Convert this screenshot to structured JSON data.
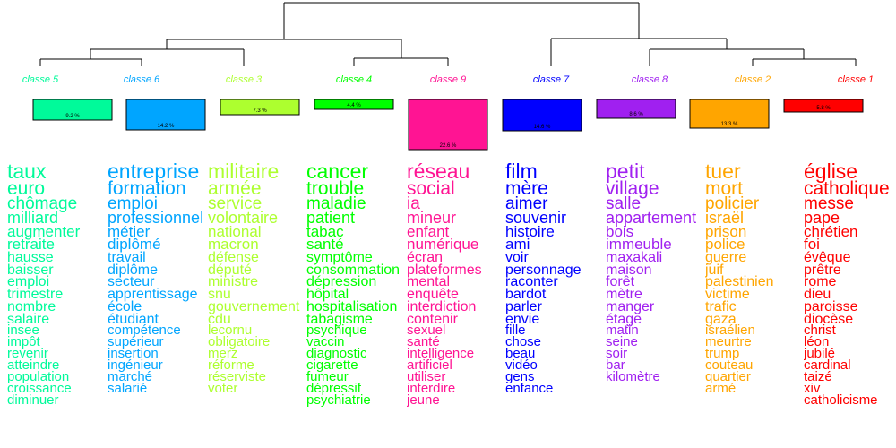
{
  "classes": [
    {
      "label": "classe  5",
      "percent": "9.2 %",
      "color": "#00FA9A",
      "words": [
        "taux",
        "euro",
        "chômage",
        "milliard",
        "augmenter",
        "retraite",
        "hausse",
        "baisser",
        "emploi",
        "trimestre",
        "nombre",
        "salaire",
        "insee",
        "impôt",
        "revenir",
        "atteindre",
        "population",
        "croissance",
        "diminuer"
      ]
    },
    {
      "label": "classe  6",
      "percent": "14.2 %",
      "color": "#00A5FF",
      "words": [
        "entreprise",
        "formation",
        "emploi",
        "professionnel",
        "métier",
        "diplômé",
        "travail",
        "diplôme",
        "secteur",
        "apprentissage",
        "école",
        "étudiant",
        "compétence",
        "supérieur",
        "insertion",
        "ingénieur",
        "marché",
        "salarié"
      ]
    },
    {
      "label": "classe  3",
      "percent": "7.3 %",
      "color": "#ADFF2F",
      "words": [
        "militaire",
        "armée",
        "service",
        "volontaire",
        "national",
        "macron",
        "défense",
        "député",
        "ministre",
        "snu",
        "gouvernement",
        "cdu",
        "lecornu",
        "obligatoire",
        "merz",
        "réforme",
        "réserviste",
        "voter"
      ]
    },
    {
      "label": "classe  4",
      "percent": "4.4 %",
      "color": "#00FF00",
      "words": [
        "cancer",
        "trouble",
        "maladie",
        "patient",
        "tabac",
        "santé",
        "symptôme",
        "consommation",
        "dépression",
        "hôpital",
        "hospitalisation",
        "tabagisme",
        "psychique",
        "vaccin",
        "diagnostic",
        "cigarette",
        "fumeur",
        "dépressif",
        "psychiatrie"
      ]
    },
    {
      "label": "classe  9",
      "percent": "22.6 %",
      "color": "#FF1493",
      "words": [
        "réseau",
        "social",
        "ia",
        "mineur",
        "enfant",
        "numérique",
        "écran",
        "plateformes",
        "mental",
        "enquête",
        "interdiction",
        "contenir",
        "sexuel",
        "santé",
        "intelligence",
        "artificiel",
        "utiliser",
        "interdire",
        "jeune"
      ]
    },
    {
      "label": "classe  7",
      "percent": "14.6 %",
      "color": "#0000FF",
      "words": [
        "film",
        "mère",
        "aimer",
        "souvenir",
        "histoire",
        "ami",
        "voir",
        "personnage",
        "raconter",
        "bardot",
        "parler",
        "envie",
        "fille",
        "chose",
        "beau",
        "vidéo",
        "gens",
        "enfance"
      ]
    },
    {
      "label": "classe  8",
      "percent": "8.6 %",
      "color": "#A020F0",
      "words": [
        "petit",
        "village",
        "salle",
        "appartement",
        "bois",
        "immeuble",
        "maxakali",
        "maison",
        "forêt",
        "mètre",
        "manger",
        "étage",
        "matin",
        "seine",
        "soir",
        "bar",
        "kilomètre"
      ]
    },
    {
      "label": "classe  2",
      "percent": "13.3 %",
      "color": "#FFA500",
      "words": [
        "tuer",
        "mort",
        "policier",
        "israël",
        "prison",
        "police",
        "guerre",
        "juif",
        "palestinien",
        "victime",
        "trafic",
        "gaza",
        "israélien",
        "meurtre",
        "trump",
        "couteau",
        "quartier",
        "armé"
      ]
    },
    {
      "label": "classe  1",
      "percent": "5.8 %",
      "color": "#FF0000",
      "words": [
        "église",
        "catholique",
        "messe",
        "pape",
        "chrétien",
        "foi",
        "évêque",
        "prêtre",
        "rome",
        "dieu",
        "paroisse",
        "diocèse",
        "christ",
        "léon",
        "jubilé",
        "cardinal",
        "taizé",
        "xiv",
        "catholicisme"
      ]
    }
  ]
}
